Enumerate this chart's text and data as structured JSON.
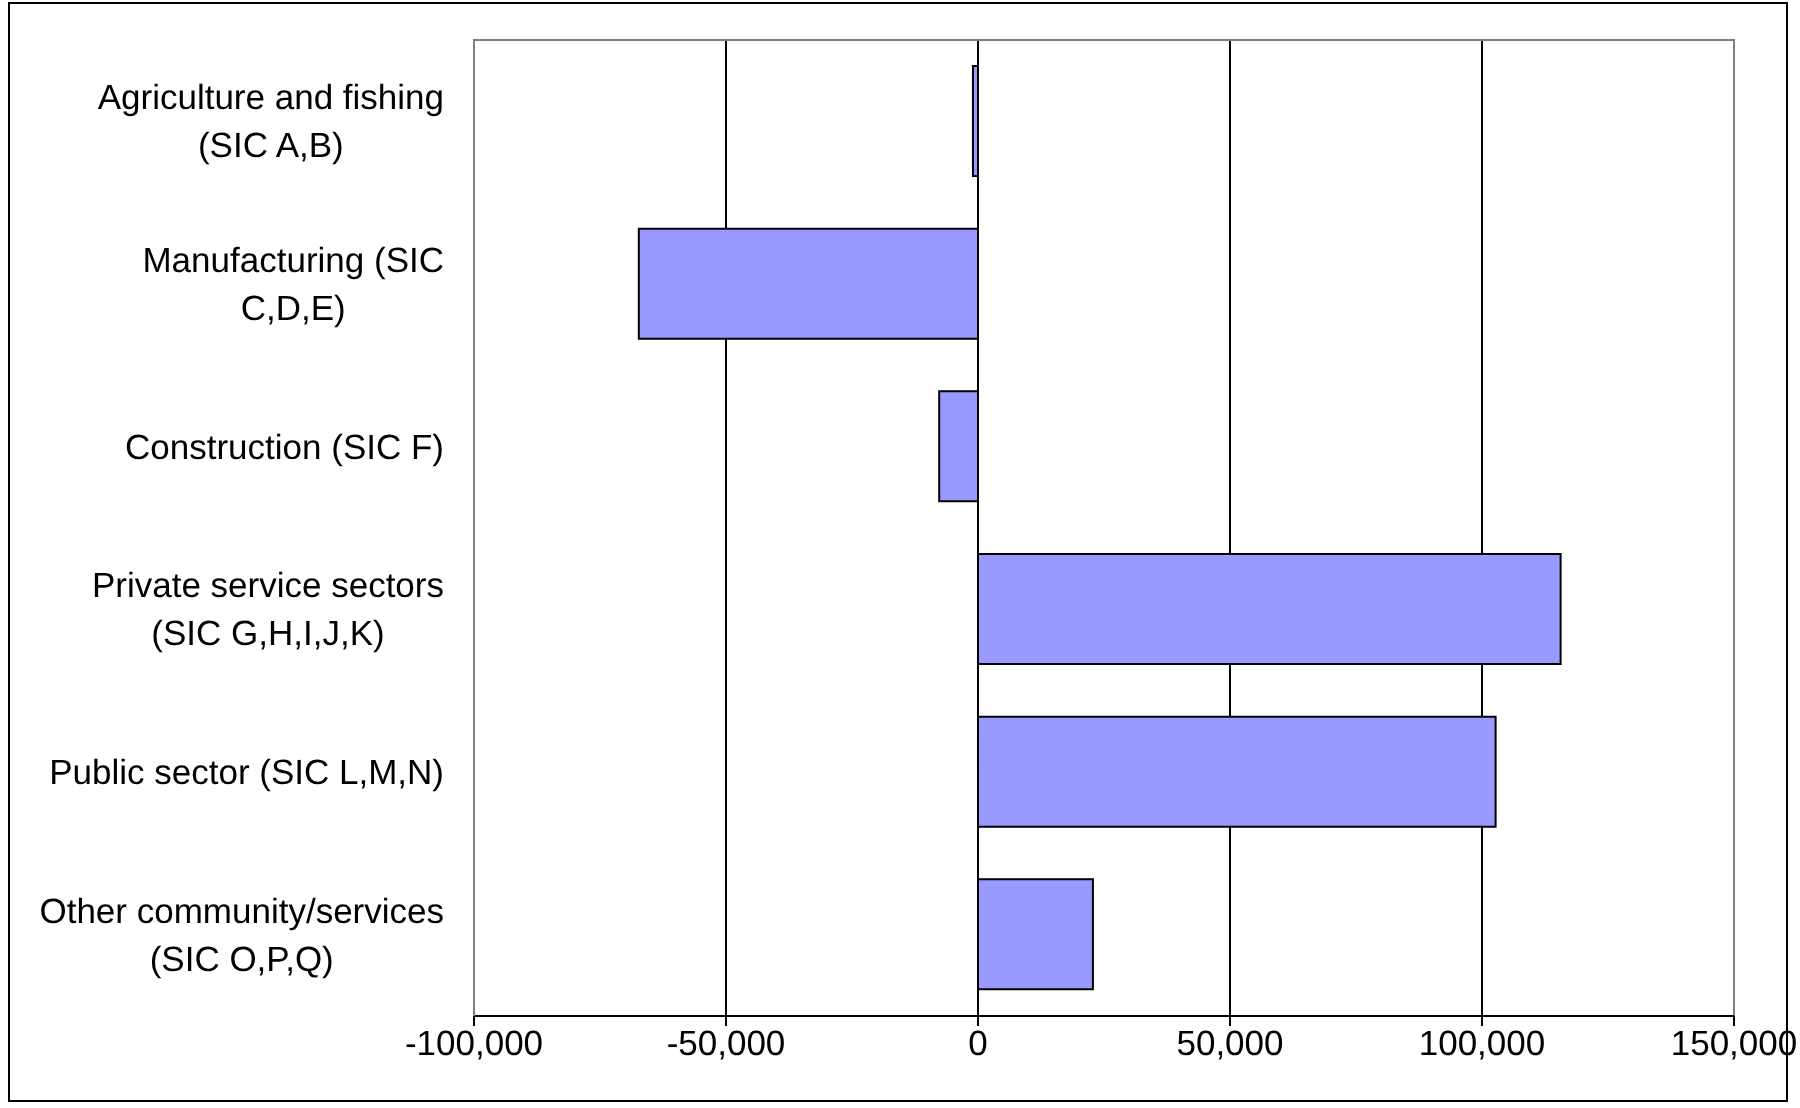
{
  "chart_data": {
    "type": "bar",
    "orientation": "horizontal",
    "categories": [
      "Agriculture and fishing (SIC A,B)",
      "Manufacturing (SIC C,D,E)",
      "Construction (SIC F)",
      "Private service sectors (SIC G,H,I,J,K)",
      "Public sector (SIC L,M,N)",
      "Other community/services (SIC O,P,Q)"
    ],
    "values": [
      -1000,
      -67300,
      -7700,
      115600,
      102700,
      22800
    ],
    "color": "#9999ff",
    "xlim": [
      -100000,
      150000
    ],
    "xticks": [
      {
        "value": -100000,
        "label": "-100,000"
      },
      {
        "value": -50000,
        "label": "-50,000"
      },
      0,
      {
        "value": 50000,
        "label": "50,000"
      },
      {
        "value": 100000,
        "label": "100,000"
      },
      {
        "value": 150000,
        "label": "150,000"
      }
    ],
    "grid": "x"
  }
}
